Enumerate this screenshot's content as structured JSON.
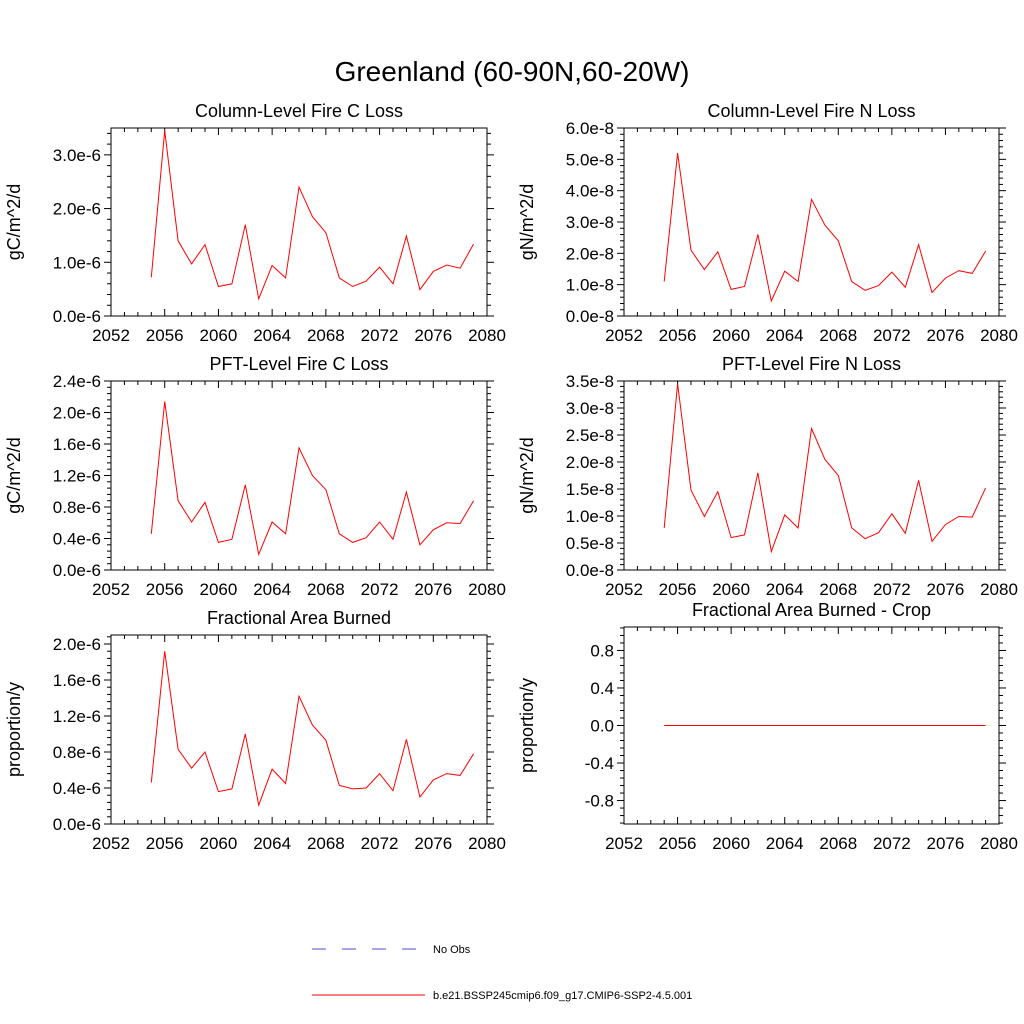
{
  "suptitle": "Greenland (60-90N,60-20W)",
  "colors": {
    "model": "#ff0000",
    "obs": "#4b4bd6",
    "axes": "#000000"
  },
  "legend": [
    {
      "label": "No Obs",
      "style": "dashed",
      "color": "#4b4bd6"
    },
    {
      "label": "b.e21.BSSP245cmip6.f09_g17.CMIP6-SSP2-4.5.001",
      "style": "solid",
      "color": "#ff0000"
    }
  ],
  "chart_data": [
    {
      "type": "line",
      "title": "Column-Level Fire C Loss",
      "ylabel": "gC/m^2/d",
      "xlim": [
        2052,
        2080
      ],
      "xticks": [
        2052,
        2056,
        2060,
        2064,
        2068,
        2072,
        2076,
        2080
      ],
      "ylim": [
        0,
        3.5e-06
      ],
      "yticks": [
        0,
        1e-06,
        2e-06,
        3e-06
      ],
      "yticklabels": [
        "0.0e-6",
        "1.0e-6",
        "2.0e-6",
        "3.0e-6"
      ],
      "x": [
        2055,
        2056,
        2057,
        2058,
        2059,
        2060,
        2061,
        2062,
        2063,
        2064,
        2065,
        2066,
        2067,
        2068,
        2069,
        2070,
        2071,
        2072,
        2073,
        2074,
        2075,
        2076,
        2077,
        2078,
        2079
      ],
      "series": [
        {
          "values": [
            7.2e-07,
            3.45e-06,
            1.4e-06,
            9.7e-07,
            1.33e-06,
            5.5e-07,
            6e-07,
            1.7e-06,
            3.2e-07,
            9.4e-07,
            7.1e-07,
            2.4e-06,
            1.85e-06,
            1.55e-06,
            7.1e-07,
            5.5e-07,
            6.5e-07,
            9.1e-07,
            6e-07,
            1.49e-06,
            4.9e-07,
            8.3e-07,
            9.5e-07,
            8.9e-07,
            1.34e-06
          ]
        }
      ]
    },
    {
      "type": "line",
      "title": "Column-Level Fire N Loss",
      "ylabel": "gN/m^2/d",
      "xlim": [
        2052,
        2080
      ],
      "xticks": [
        2052,
        2056,
        2060,
        2064,
        2068,
        2072,
        2076,
        2080
      ],
      "ylim": [
        0,
        6e-08
      ],
      "yticks": [
        0,
        1e-08,
        2e-08,
        3e-08,
        4e-08,
        5e-08,
        6e-08
      ],
      "yticklabels": [
        "0.0e-8",
        "1.0e-8",
        "2.0e-8",
        "3.0e-8",
        "4.0e-8",
        "5.0e-8",
        "6.0e-8"
      ],
      "x": [
        2055,
        2056,
        2057,
        2058,
        2059,
        2060,
        2061,
        2062,
        2063,
        2064,
        2065,
        2066,
        2067,
        2068,
        2069,
        2070,
        2071,
        2072,
        2073,
        2074,
        2075,
        2076,
        2077,
        2078,
        2079
      ],
      "series": [
        {
          "values": [
            1.1e-08,
            5.2e-08,
            2.1e-08,
            1.48e-08,
            2.05e-08,
            8.5e-09,
            9.4e-09,
            2.6e-08,
            4.8e-09,
            1.43e-08,
            1.1e-08,
            3.72e-08,
            2.9e-08,
            2.4e-08,
            1.1e-08,
            8.2e-09,
            9.7e-09,
            1.4e-08,
            9.2e-09,
            2.28e-08,
            7.5e-09,
            1.21e-08,
            1.45e-08,
            1.36e-08,
            2.07e-08
          ]
        }
      ]
    },
    {
      "type": "line",
      "title": "PFT-Level Fire C Loss",
      "ylabel": "gC/m^2/d",
      "xlim": [
        2052,
        2080
      ],
      "xticks": [
        2052,
        2056,
        2060,
        2064,
        2068,
        2072,
        2076,
        2080
      ],
      "ylim": [
        0,
        2.4e-06
      ],
      "yticks": [
        0,
        4e-07,
        8e-07,
        1.2e-06,
        1.6e-06,
        2e-06,
        2.4e-06
      ],
      "yticklabels": [
        "0.0e-6",
        "0.4e-6",
        "0.8e-6",
        "1.2e-6",
        "1.6e-6",
        "2.0e-6",
        "2.4e-6"
      ],
      "x": [
        2055,
        2056,
        2057,
        2058,
        2059,
        2060,
        2061,
        2062,
        2063,
        2064,
        2065,
        2066,
        2067,
        2068,
        2069,
        2070,
        2071,
        2072,
        2073,
        2074,
        2075,
        2076,
        2077,
        2078,
        2079
      ],
      "series": [
        {
          "values": [
            4.6e-07,
            2.14e-06,
            8.8e-07,
            6.1e-07,
            8.6e-07,
            3.5e-07,
            3.9e-07,
            1.08e-06,
            2e-07,
            6.1e-07,
            4.6e-07,
            1.55e-06,
            1.2e-06,
            1.02e-06,
            4.6e-07,
            3.5e-07,
            4.1e-07,
            6.1e-07,
            3.9e-07,
            9.9e-07,
            3.2e-07,
            5.1e-07,
            6e-07,
            5.9e-07,
            8.8e-07
          ]
        }
      ]
    },
    {
      "type": "line",
      "title": "PFT-Level Fire N Loss",
      "ylabel": "gN/m^2/d",
      "xlim": [
        2052,
        2080
      ],
      "xticks": [
        2052,
        2056,
        2060,
        2064,
        2068,
        2072,
        2076,
        2080
      ],
      "ylim": [
        0,
        3.5e-08
      ],
      "yticks": [
        0,
        5e-09,
        1e-08,
        1.5e-08,
        2e-08,
        2.5e-08,
        3e-08,
        3.5e-08
      ],
      "yticklabels": [
        "0.0e-8",
        "0.5e-8",
        "1.0e-8",
        "1.5e-8",
        "2.0e-8",
        "2.5e-8",
        "3.0e-8",
        "3.5e-8"
      ],
      "x": [
        2055,
        2056,
        2057,
        2058,
        2059,
        2060,
        2061,
        2062,
        2063,
        2064,
        2065,
        2066,
        2067,
        2068,
        2069,
        2070,
        2071,
        2072,
        2073,
        2074,
        2075,
        2076,
        2077,
        2078,
        2079
      ],
      "series": [
        {
          "values": [
            7.8e-09,
            3.45e-08,
            1.48e-08,
            9.9e-09,
            1.45e-08,
            6e-09,
            6.5e-09,
            1.8e-08,
            3.4e-09,
            1.02e-08,
            7.8e-09,
            2.62e-08,
            2.05e-08,
            1.75e-08,
            7.8e-09,
            5.8e-09,
            6.9e-09,
            1.04e-08,
            6.8e-09,
            1.66e-08,
            5.3e-09,
            8.4e-09,
            9.9e-09,
            9.8e-09,
            1.52e-08
          ]
        }
      ]
    },
    {
      "type": "line",
      "title": "Fractional Area Burned",
      "ylabel": "proportion/y",
      "xlim": [
        2052,
        2080
      ],
      "xticks": [
        2052,
        2056,
        2060,
        2064,
        2068,
        2072,
        2076,
        2080
      ],
      "ylim": [
        0,
        2.1e-06
      ],
      "yticks": [
        0,
        4e-07,
        8e-07,
        1.2e-06,
        1.6e-06,
        2e-06
      ],
      "yticklabels": [
        "0.0e-6",
        "0.4e-6",
        "0.8e-6",
        "1.2e-6",
        "1.6e-6",
        "2.0e-6"
      ],
      "x": [
        2055,
        2056,
        2057,
        2058,
        2059,
        2060,
        2061,
        2062,
        2063,
        2064,
        2065,
        2066,
        2067,
        2068,
        2069,
        2070,
        2071,
        2072,
        2073,
        2074,
        2075,
        2076,
        2077,
        2078,
        2079
      ],
      "series": [
        {
          "values": [
            4.6e-07,
            1.92e-06,
            8.3e-07,
            6.2e-07,
            8e-07,
            3.6e-07,
            3.9e-07,
            1e-06,
            2.1e-07,
            6.1e-07,
            4.5e-07,
            1.42e-06,
            1.1e-06,
            9.3e-07,
            4.3e-07,
            3.9e-07,
            4e-07,
            5.6e-07,
            3.7e-07,
            9.4e-07,
            3e-07,
            4.9e-07,
            5.6e-07,
            5.4e-07,
            7.8e-07
          ]
        }
      ]
    },
    {
      "type": "line",
      "title": "Fractional Area Burned - Crop",
      "ylabel": "proportion/y",
      "xlim": [
        2052,
        2080
      ],
      "xticks": [
        2052,
        2056,
        2060,
        2064,
        2068,
        2072,
        2076,
        2080
      ],
      "ylim": [
        -1.05,
        1.05
      ],
      "yticks": [
        -0.8,
        -0.4,
        0.0,
        0.4,
        0.8
      ],
      "yticklabels": [
        "-0.8",
        "-0.4",
        "0.0",
        "0.4",
        "0.8"
      ],
      "x": [
        2055,
        2056,
        2057,
        2058,
        2059,
        2060,
        2061,
        2062,
        2063,
        2064,
        2065,
        2066,
        2067,
        2068,
        2069,
        2070,
        2071,
        2072,
        2073,
        2074,
        2075,
        2076,
        2077,
        2078,
        2079
      ],
      "series": [
        {
          "values": [
            0,
            0,
            0,
            0,
            0,
            0,
            0,
            0,
            0,
            0,
            0,
            0,
            0,
            0,
            0,
            0,
            0,
            0,
            0,
            0,
            0,
            0,
            0,
            0,
            0
          ]
        }
      ]
    }
  ]
}
